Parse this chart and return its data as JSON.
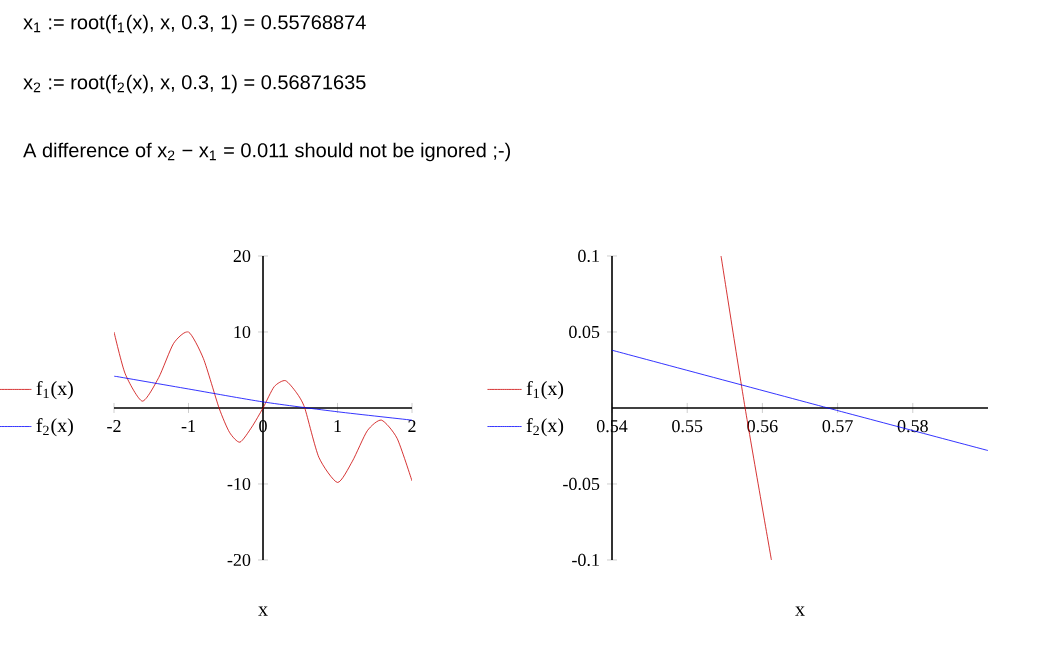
{
  "chart_data": [
    {
      "type": "line",
      "annotations": [
        "x$_{1}$ := root(f$_{1}$(x), x, 0.3, 1) = 0.55768874",
        "x$_{2}$ := root(f$_{2}$(x), x, 0.3, 1) = 0.56871635",
        "A difference of x$_{2}$ − x$_{1}$ = 0.011  should not be ignored ;-)"
      ],
      "xlabel": "x",
      "xlim": [
        -2,
        2
      ],
      "ylim": [
        -20,
        20
      ],
      "xticks": [
        -2,
        -1,
        0,
        1,
        2
      ],
      "yticks": [
        -20,
        -10,
        10,
        20
      ],
      "legend": "left",
      "marker": "none",
      "line_style": "solid",
      "series": [
        {
          "name": "f$_{1}$(x)",
          "color": "#cc0000",
          "x": [
            -2,
            -1.85,
            -1.62,
            -1.4,
            -1.2,
            -1,
            -0.8,
            -0.59,
            -0.45,
            -0.31,
            -0.15,
            0,
            0.15,
            0.3,
            0.45,
            0.56,
            0.75,
            1,
            1.2,
            1.4,
            1.59,
            1.8,
            2
          ],
          "values": [
            10,
            4.5,
            0.9,
            4,
            8.5,
            10,
            6.5,
            0,
            -3.2,
            -4.5,
            -2.5,
            0,
            2.8,
            3.6,
            2,
            0,
            -6.5,
            -9.8,
            -7,
            -3,
            -1.6,
            -4,
            -9.6
          ]
        },
        {
          "name": "f$_{2}$(x)",
          "color": "#0000ff",
          "x": [
            -2,
            -1,
            0,
            1,
            2
          ],
          "values": [
            4.2,
            2.5,
            0.8,
            -0.5,
            -1.6
          ]
        }
      ]
    },
    {
      "type": "line",
      "xlabel": "x",
      "xlim": [
        0.54,
        0.59
      ],
      "ylim": [
        -0.1,
        0.1
      ],
      "xticks": [
        0.54,
        0.55,
        0.56,
        0.57,
        0.58
      ],
      "yticks": [
        -0.1,
        -0.05,
        0.05,
        0.1
      ],
      "legend": "left",
      "marker": "none",
      "line_style": "solid",
      "series": [
        {
          "name": "f$_{1}$(x)",
          "color": "#cc0000",
          "x": [
            0.5545,
            0.5577,
            0.5612
          ],
          "values": [
            0.1,
            0,
            -0.1
          ]
        },
        {
          "name": "f$_{2}$(x)",
          "color": "#0000ff",
          "x": [
            0.54,
            0.5687,
            0.59
          ],
          "values": [
            0.038,
            0,
            -0.028
          ]
        }
      ]
    }
  ]
}
